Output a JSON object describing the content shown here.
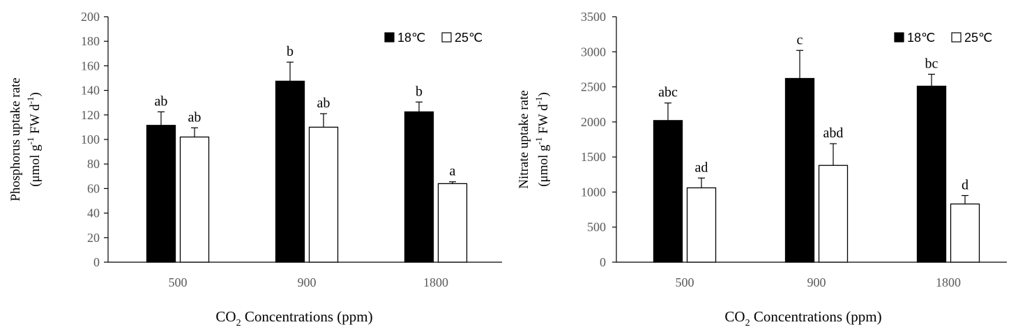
{
  "chart_data": [
    {
      "type": "bar",
      "ylabel_line1": "Phosphorus uptake rate",
      "ylabel_line2_pre": "(μmol g",
      "ylabel_line2_sup1": "-1",
      "ylabel_line2_mid": " FW d",
      "ylabel_line2_sup2": "-1",
      "ylabel_line2_post": ")",
      "xlabel_pre": "CO",
      "xlabel_sub": "2",
      "xlabel_post": " Concentrations (ppm)",
      "ylim": [
        0,
        200
      ],
      "yticks": [
        "0",
        "20",
        "40",
        "60",
        "80",
        "100",
        "120",
        "140",
        "160",
        "180",
        "200"
      ],
      "categories": [
        "500",
        "900",
        "1800"
      ],
      "legend_position": "top-right",
      "series": [
        {
          "name": "18℃",
          "color": "#000000",
          "values": [
            111.5,
            147.5,
            122.5
          ],
          "errors": [
            11,
            15.5,
            8
          ],
          "labels": [
            "ab",
            "b",
            "b"
          ]
        },
        {
          "name": "25℃",
          "color": "#ffffff",
          "values": [
            102,
            110,
            64
          ],
          "errors": [
            7.5,
            11,
            1.5
          ],
          "labels": [
            "ab",
            "ab",
            "a"
          ]
        }
      ]
    },
    {
      "type": "bar",
      "ylabel_line1": "Nitrate uptake rate",
      "ylabel_line2_pre": "(μmol g",
      "ylabel_line2_sup1": "-1",
      "ylabel_line2_mid": " FW d",
      "ylabel_line2_sup2": "-1",
      "ylabel_line2_post": ")",
      "xlabel_pre": "CO",
      "xlabel_sub": "2",
      "xlabel_post": " Concentrations (ppm)",
      "ylim": [
        0,
        3500
      ],
      "yticks": [
        "0",
        "500",
        "1000",
        "1500",
        "2000",
        "2500",
        "3000",
        "3500"
      ],
      "categories": [
        "500",
        "900",
        "1800"
      ],
      "legend_position": "top-right",
      "series": [
        {
          "name": "18℃",
          "color": "#000000",
          "values": [
            2020,
            2620,
            2510
          ],
          "errors": [
            250,
            400,
            170
          ],
          "labels": [
            "abc",
            "c",
            "bc"
          ]
        },
        {
          "name": "25℃",
          "color": "#ffffff",
          "values": [
            1060,
            1380,
            830
          ],
          "errors": [
            140,
            310,
            120
          ],
          "labels": [
            "ad",
            "abd",
            "d"
          ]
        }
      ]
    }
  ]
}
